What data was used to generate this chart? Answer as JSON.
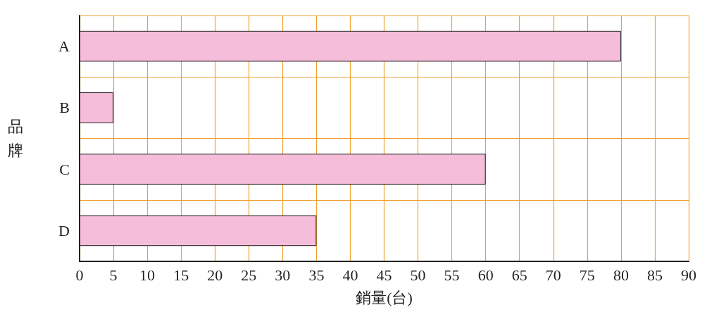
{
  "chart_data": {
    "type": "bar",
    "orientation": "horizontal",
    "xlabel": "銷量(台)",
    "ylabel": "品牌",
    "categories": [
      "A",
      "B",
      "C",
      "D"
    ],
    "values": [
      80,
      5,
      60,
      35
    ],
    "color": "#f5bdd9",
    "xlim": [
      0,
      90
    ],
    "xticks": [
      0,
      5,
      10,
      15,
      20,
      25,
      30,
      35,
      40,
      45,
      50,
      55,
      60,
      65,
      70,
      75,
      80,
      85,
      90
    ],
    "grid": true
  }
}
